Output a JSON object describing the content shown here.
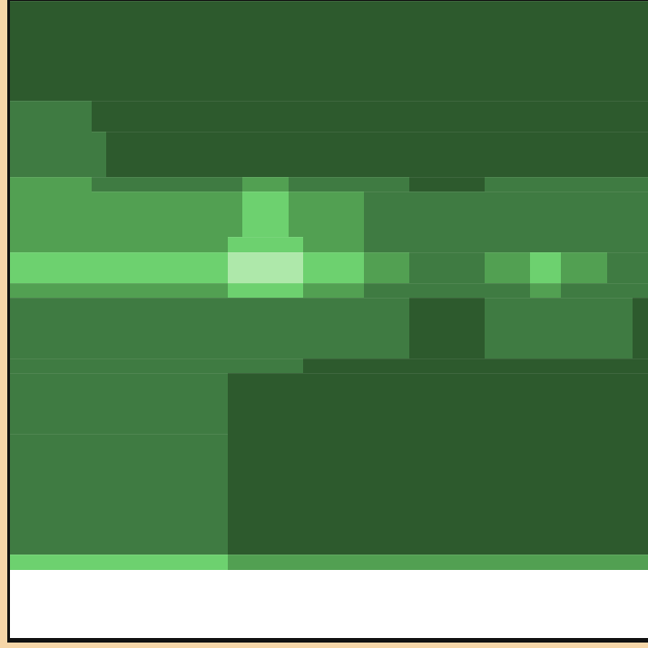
{
  "palette": {
    "darkest": "#2d5a2d",
    "dark": "#3f7b42",
    "mid": "#52a052",
    "light": "#6dd16f",
    "highlight": "#aee8aa",
    "empty": "#ffffff",
    "frame_outer": "#f6d6a8",
    "frame_inner": "#111111"
  },
  "terrain": {
    "description_free_map": true
  }
}
